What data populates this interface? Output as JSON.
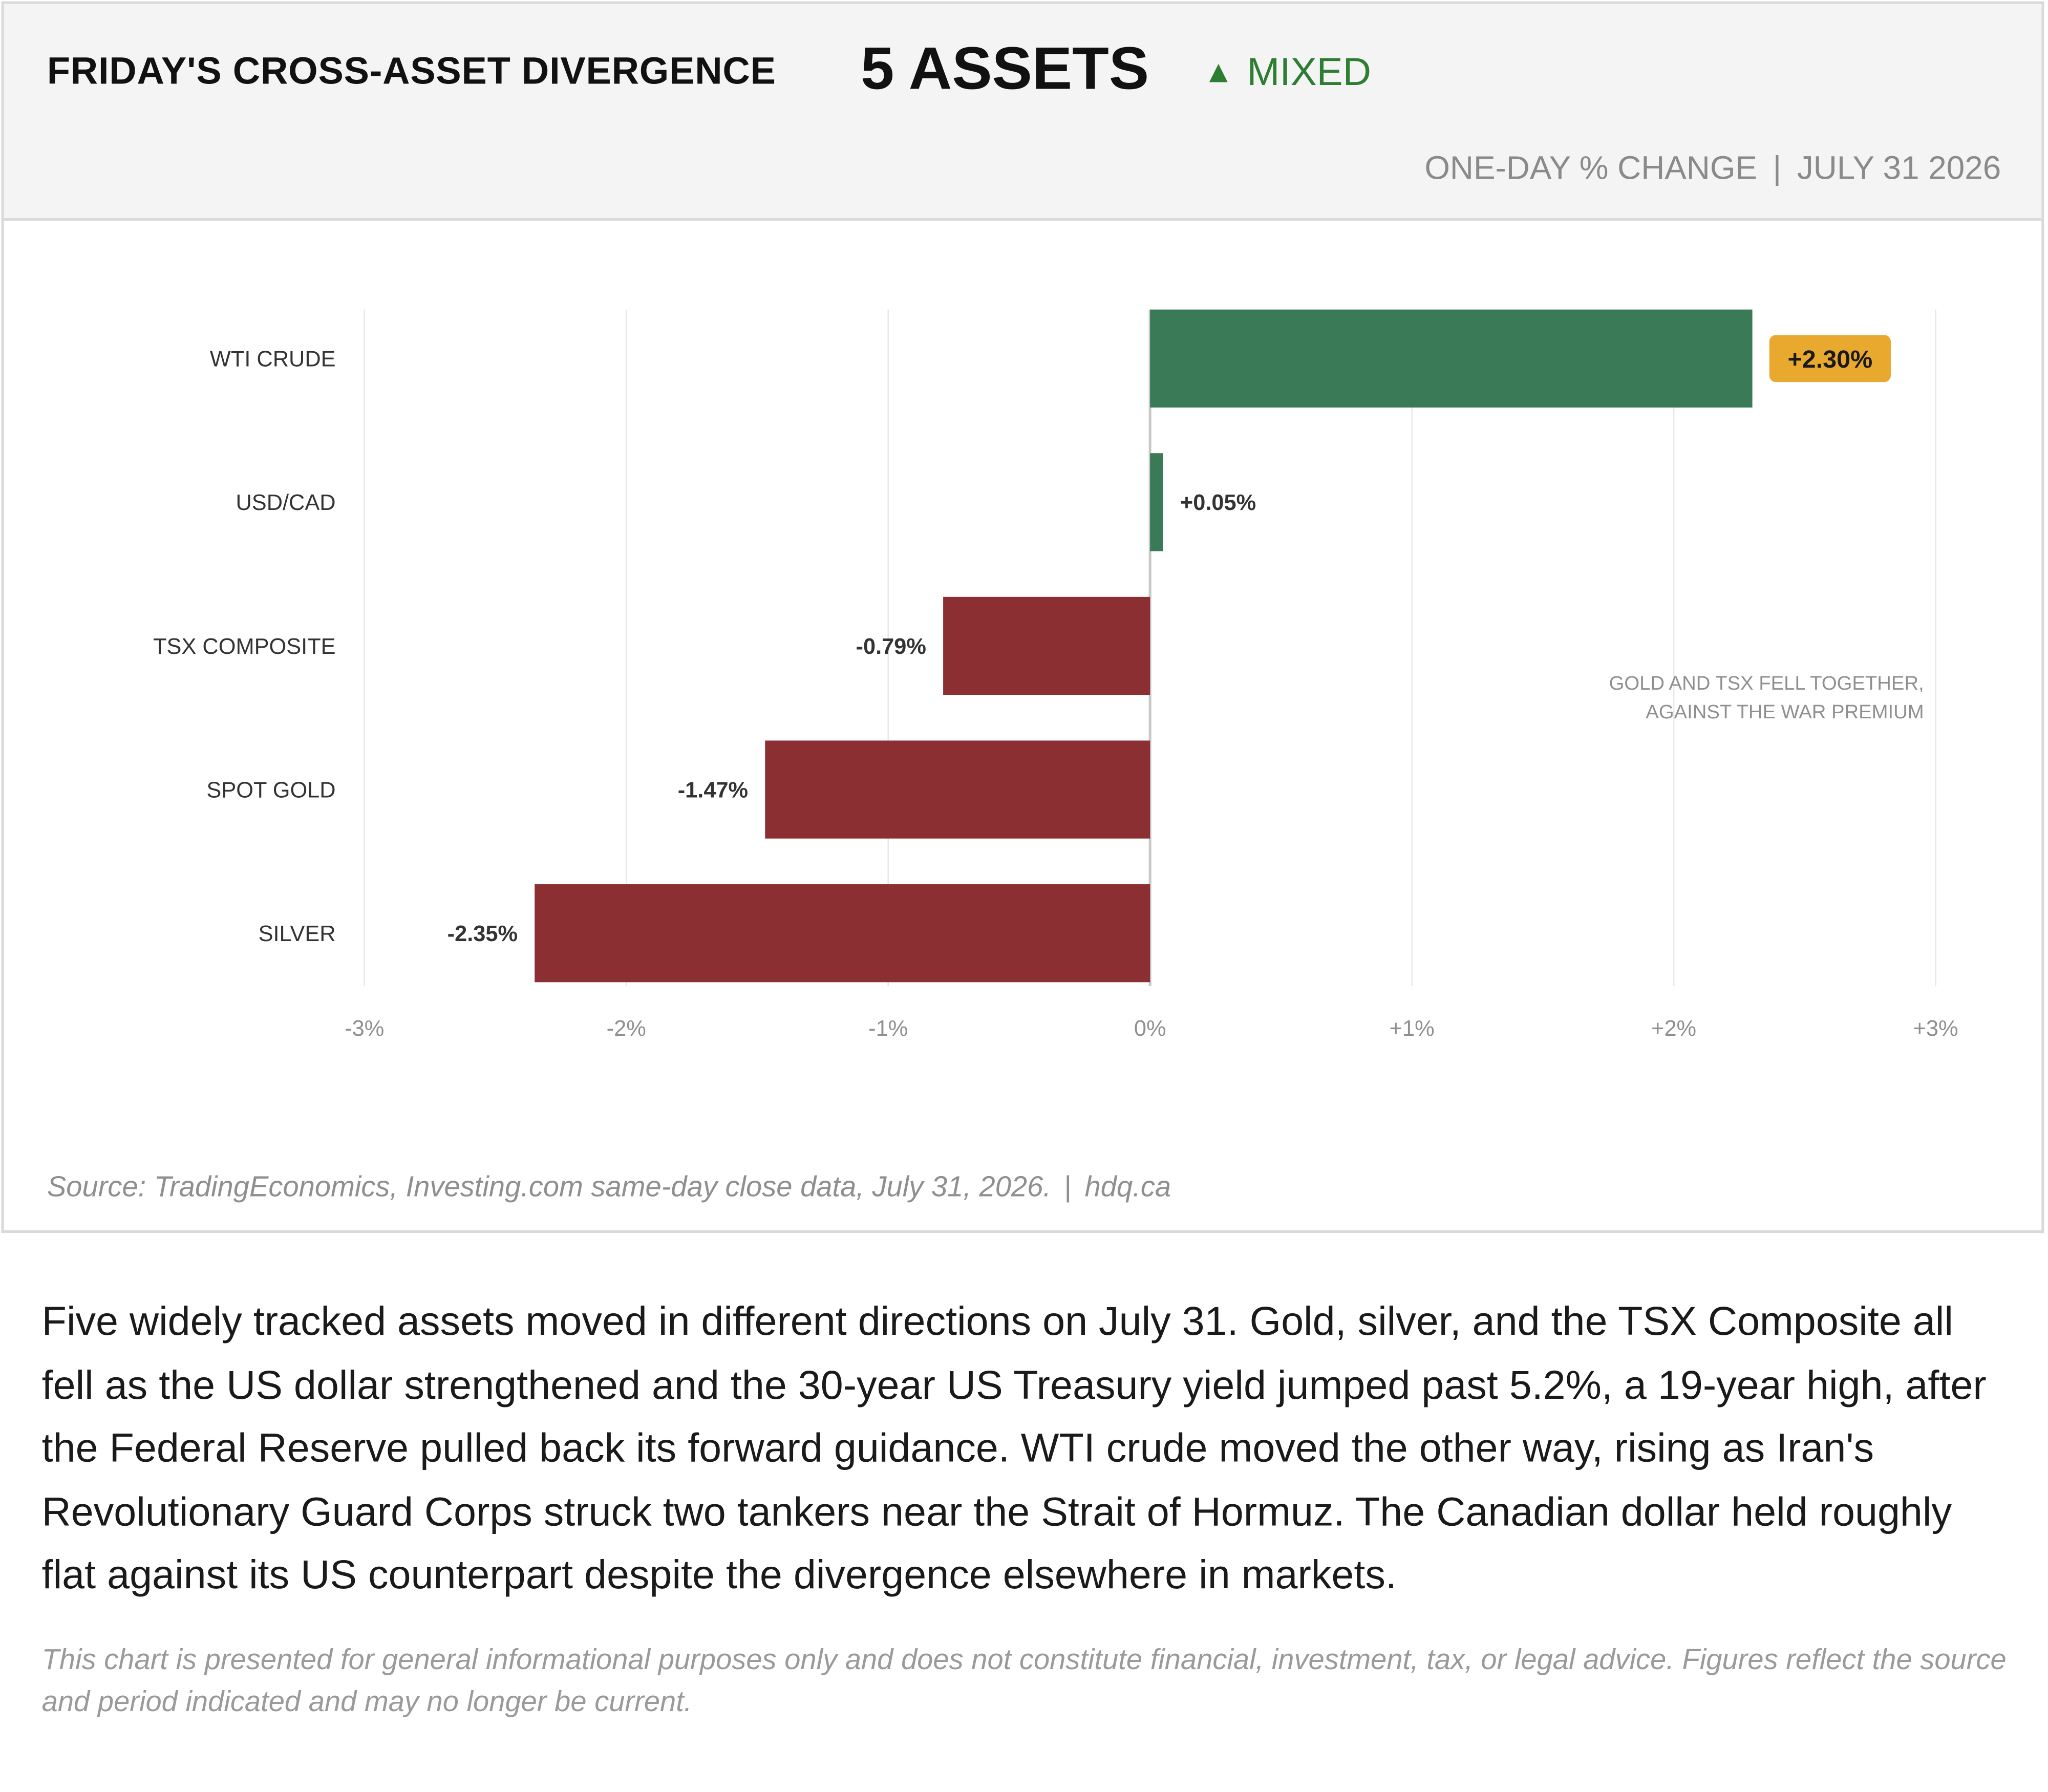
{
  "header": {
    "title": "FRIDAY'S CROSS-ASSET DIVERGENCE",
    "count": "5 ASSETS",
    "status_label": "MIXED",
    "status_icon": "triangle-up-icon",
    "status_color": "#2e7d32",
    "subtitle_left": "ONE-DAY % CHANGE",
    "subtitle_sep": "|",
    "subtitle_right": "JULY 31 2026"
  },
  "chart_data": {
    "type": "bar",
    "orientation": "horizontal",
    "categories": [
      "WTI CRUDE",
      "USD/CAD",
      "TSX COMPOSITE",
      "SPOT GOLD",
      "SILVER"
    ],
    "values": [
      2.3,
      0.05,
      -0.79,
      -1.47,
      -2.35
    ],
    "value_labels": [
      "+2.30%",
      "+0.05%",
      "-0.79%",
      "-1.47%",
      "-2.35%"
    ],
    "highlight_index": 0,
    "xlim": [
      -3,
      3
    ],
    "xticks": [
      -3,
      -2,
      -1,
      0,
      1,
      2,
      3
    ],
    "xtick_labels": [
      "-3%",
      "-2%",
      "-1%",
      "0%",
      "+1%",
      "+2%",
      "+3%"
    ],
    "grid": true,
    "colors": {
      "positive": "#3b7a57",
      "negative": "#8b2f32",
      "highlight_badge": "#e8a92e",
      "grid": "#e8e8e8",
      "zero_line": "#c8c8c8"
    },
    "annotation": {
      "lines": [
        "GOLD AND TSX FELL TOGETHER,",
        "AGAINST THE WAR PREMIUM"
      ],
      "placement": "right, between TSX COMPOSITE and SPOT GOLD"
    }
  },
  "source": {
    "text": "Source: TradingEconomics, Investing.com same-day close data, July 31, 2026.",
    "sep": "|",
    "site": "hdq.ca"
  },
  "body_text": "Five widely tracked assets moved in different directions on July 31. Gold, silver, and the TSX Composite all fell as the US dollar strengthened and the 30-year US Treasury yield jumped past 5.2%, a 19-year high, after the Federal Reserve pulled back its forward guidance. WTI crude moved the other way, rising as Iran's Revolutionary Guard Corps struck two tankers near the Strait of Hormuz. The Canadian dollar held roughly flat against its US counterpart despite the divergence elsewhere in markets.",
  "disclaimer": "This chart is presented for general informational purposes only and does not constitute financial, investment, tax, or legal advice. Figures reflect the source and period indicated and may no longer be current."
}
